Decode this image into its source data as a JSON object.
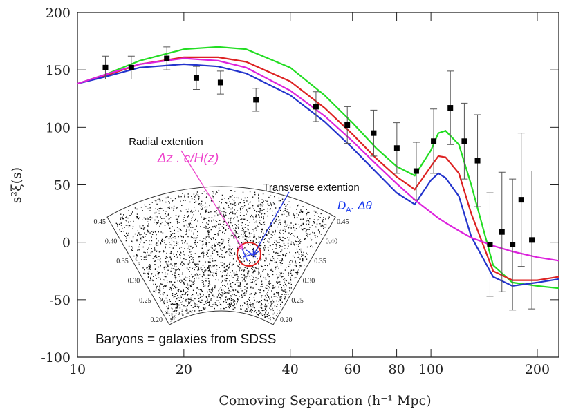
{
  "chart_data": {
    "type": "line",
    "xscale": "log",
    "xlim": [
      10,
      230
    ],
    "ylim": [
      -100,
      200
    ],
    "xticks": [
      10,
      20,
      40,
      60,
      80,
      100,
      200
    ],
    "yticks": [
      -100,
      -50,
      0,
      50,
      100,
      150,
      200
    ],
    "x_label": "Comoving Separation (h⁻¹ Mpc)",
    "y_label": "s²ξ(s)",
    "series": [
      {
        "color": "#22dd22",
        "x": [
          10,
          12,
          15,
          20,
          25,
          30,
          40,
          50,
          60,
          70,
          80,
          90,
          100,
          105,
          110,
          120,
          130,
          150,
          170,
          200,
          230
        ],
        "values": [
          138,
          146,
          158,
          168,
          170,
          168,
          152,
          128,
          104,
          82,
          66,
          58,
          80,
          95,
          97,
          85,
          50,
          -20,
          -35,
          -38,
          -40
        ]
      },
      {
        "color": "#dd2222",
        "x": [
          10,
          12,
          15,
          20,
          25,
          30,
          40,
          50,
          60,
          70,
          80,
          90,
          100,
          105,
          110,
          120,
          130,
          150,
          170,
          200,
          230
        ],
        "values": [
          138,
          145,
          155,
          161,
          161,
          157,
          140,
          117,
          94,
          73,
          57,
          46,
          66,
          75,
          74,
          60,
          25,
          -25,
          -33,
          -33,
          -30
        ]
      },
      {
        "color": "#2233cc",
        "x": [
          10,
          12,
          15,
          20,
          25,
          30,
          40,
          50,
          60,
          70,
          80,
          90,
          100,
          105,
          110,
          120,
          130,
          150,
          170,
          200,
          230
        ],
        "values": [
          138,
          144,
          152,
          155,
          153,
          147,
          128,
          105,
          82,
          61,
          43,
          33,
          54,
          60,
          56,
          40,
          5,
          -30,
          -38,
          -35,
          -32
        ]
      },
      {
        "color": "#dd22dd",
        "x": [
          10,
          12,
          15,
          20,
          25,
          30,
          40,
          50,
          60,
          70,
          80,
          90,
          100,
          105,
          110,
          120,
          130,
          150,
          170,
          200,
          230
        ],
        "values": [
          138,
          146,
          155,
          160,
          158,
          152,
          132,
          110,
          88,
          68,
          51,
          37,
          26,
          21,
          17,
          10,
          4,
          -3,
          -8,
          -13,
          -16
        ]
      }
    ],
    "measurements": {
      "color": "#000000",
      "x": [
        12.0,
        14.2,
        17.9,
        21.7,
        25.4,
        32.0,
        47.3,
        58.0,
        68.9,
        80.1,
        90.9,
        101.8,
        113.5,
        124.3,
        135.5,
        146.9,
        158.8,
        170.2,
        180.1,
        193.0
      ],
      "values": [
        152,
        152,
        160,
        143,
        139,
        124,
        118,
        102,
        95,
        82,
        62,
        88,
        117,
        88,
        71,
        -2,
        9,
        -2,
        37,
        2
      ],
      "errors": [
        10,
        10,
        10,
        10,
        10,
        10,
        13,
        16,
        20,
        22,
        25,
        28,
        32,
        33,
        40,
        45,
        52,
        57,
        58,
        60
      ]
    },
    "annotations": {
      "radial": "Radial extention",
      "radial_formula": "Δz . c/H(z)",
      "transverse": "Transverse extention",
      "transverse_formula": [
        "D",
        "A",
        ". Δθ"
      ],
      "caption": "Baryons =  galaxies from SDSS"
    },
    "inset": {
      "left_labels": [
        "0.45",
        "0.40",
        "0.35",
        "0.30",
        "0.25",
        "0.20"
      ],
      "right_labels": [
        "0.45",
        "0.40",
        "0.35",
        "0.30",
        "0.25",
        "0.20"
      ]
    }
  }
}
